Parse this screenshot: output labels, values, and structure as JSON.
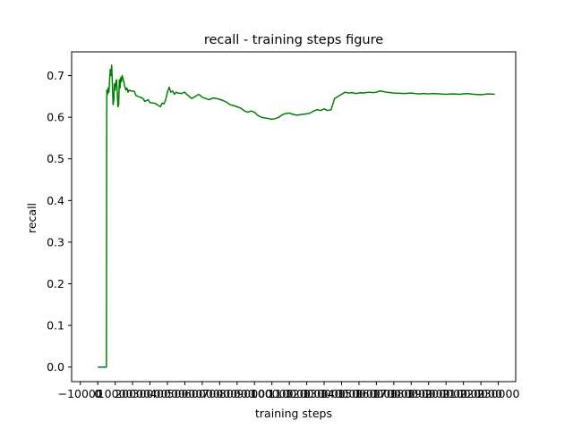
{
  "chart_data": {
    "type": "line",
    "title": "recall - training steps figure",
    "xlabel": "training steps",
    "ylabel": "recall",
    "xlim": [
      -15000,
      240000
    ],
    "ylim": [
      -0.035,
      0.757
    ],
    "x_ticks": [
      -10000,
      0,
      10000,
      20000,
      30000,
      40000,
      50000,
      60000,
      70000,
      80000,
      90000,
      100000,
      110000,
      120000,
      130000,
      140000,
      150000,
      160000,
      170000,
      180000,
      190000,
      200000,
      210000,
      220000,
      230000
    ],
    "x_tick_labels": [
      "−10000",
      "0",
      "10000",
      "20000",
      "30000",
      "40000",
      "50000",
      "60000",
      "70000",
      "80000",
      "90000",
      "100000",
      "110000",
      "120000",
      "130000",
      "140000",
      "150000",
      "160000",
      "170000",
      "180000",
      "190000",
      "200000",
      "210000",
      "220000",
      "230000"
    ],
    "y_ticks": [
      0.0,
      0.1,
      0.2,
      0.3,
      0.4,
      0.5,
      0.6,
      0.7
    ],
    "y_tick_labels": [
      "0.0",
      "0.1",
      "0.2",
      "0.3",
      "0.4",
      "0.5",
      "0.6",
      "0.7"
    ],
    "grid": false,
    "series": [
      {
        "color": "#008000",
        "x": [
          0,
          5000,
          5200,
          5600,
          6000,
          6400,
          6800,
          7200,
          7600,
          8000,
          8400,
          8800,
          9200,
          9600,
          10000,
          10400,
          10800,
          11200,
          11600,
          12000,
          12400,
          12800,
          13200,
          13600,
          14000,
          15000,
          15400,
          15800,
          16200,
          16600,
          17000,
          17400,
          18000,
          19000,
          21000,
          22000,
          26000,
          27000,
          29000,
          30000,
          32000,
          33000,
          36000,
          37000,
          38000,
          39000,
          40000,
          41000,
          42000,
          43000,
          44000,
          45000,
          46000,
          48000,
          50000,
          51000,
          52000,
          53000,
          54000,
          56000,
          58000,
          60000,
          62000,
          64000,
          66000,
          68000,
          70000,
          72000,
          74000,
          76000,
          78000,
          80000,
          82000,
          84000,
          86000,
          88000,
          90000,
          92000,
          94000,
          96000,
          98000,
          100000,
          102000,
          104000,
          106000,
          108000,
          110000,
          112000,
          114000,
          116000,
          118000,
          120000,
          122000,
          124000,
          126000,
          128000,
          130000,
          132000,
          134000,
          136000,
          138000,
          140000,
          142000,
          144000,
          146000,
          148000,
          150000,
          151000,
          152000,
          154000,
          156000,
          158000,
          160000,
          162000,
          166000,
          170000,
          176000,
          180000,
          184000,
          188000,
          190000,
          192000,
          196000,
          200000,
          204000,
          208000,
          212000,
          216000,
          220000,
          224000,
          228000
        ],
        "y": [
          0.0,
          0.0,
          0.665,
          0.655,
          0.67,
          0.66,
          0.69,
          0.715,
          0.7,
          0.725,
          0.68,
          0.63,
          0.64,
          0.68,
          0.665,
          0.685,
          0.69,
          0.66,
          0.625,
          0.63,
          0.69,
          0.67,
          0.695,
          0.685,
          0.7,
          0.685,
          0.675,
          0.67,
          0.665,
          0.67,
          0.668,
          0.66,
          0.665,
          0.663,
          0.662,
          0.652,
          0.645,
          0.638,
          0.642,
          0.635,
          0.634,
          0.633,
          0.625,
          0.634,
          0.632,
          0.642,
          0.66,
          0.672,
          0.66,
          0.663,
          0.655,
          0.66,
          0.658,
          0.657,
          0.66,
          0.655,
          0.652,
          0.648,
          0.645,
          0.65,
          0.655,
          0.648,
          0.645,
          0.642,
          0.646,
          0.645,
          0.643,
          0.64,
          0.636,
          0.63,
          0.628,
          0.625,
          0.622,
          0.616,
          0.612,
          0.615,
          0.612,
          0.604,
          0.6,
          0.598,
          0.597,
          0.595,
          0.597,
          0.6,
          0.606,
          0.609,
          0.61,
          0.607,
          0.605,
          0.606,
          0.607,
          0.608,
          0.61,
          0.615,
          0.618,
          0.616,
          0.62,
          0.616,
          0.618,
          0.645,
          0.65,
          0.655,
          0.66,
          0.658,
          0.659,
          0.657,
          0.658,
          0.659,
          0.658,
          0.659,
          0.66,
          0.659,
          0.66,
          0.663,
          0.66,
          0.658,
          0.657,
          0.658,
          0.656,
          0.657,
          0.656,
          0.657,
          0.656,
          0.655,
          0.656,
          0.655,
          0.657,
          0.655,
          0.654,
          0.656,
          0.655
        ]
      }
    ]
  }
}
